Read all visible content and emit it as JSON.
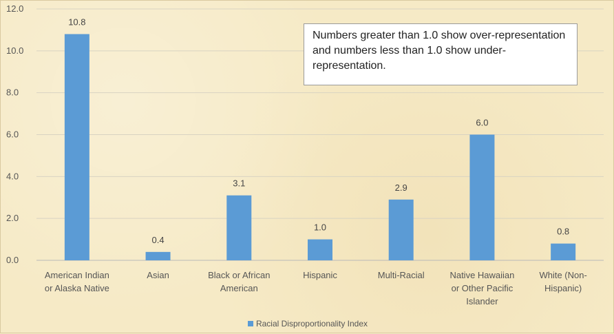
{
  "chart_data": {
    "type": "bar",
    "categories": [
      [
        "American Indian",
        "or Alaska Native"
      ],
      [
        "Asian"
      ],
      [
        "Black or African",
        "American"
      ],
      [
        "Hispanic"
      ],
      [
        "Multi-Racial"
      ],
      [
        "Native Hawaiian",
        "or Other Pacific",
        "Islander"
      ],
      [
        "White (Non-",
        "Hispanic)"
      ]
    ],
    "values": [
      10.8,
      0.4,
      3.1,
      1.0,
      2.9,
      6.0,
      0.8
    ],
    "value_labels": [
      "10.8",
      "0.4",
      "3.1",
      "1.0",
      "2.9",
      "6.0",
      "0.8"
    ],
    "ylim": [
      0,
      12
    ],
    "y_ticks": [
      "0.0",
      "2.0",
      "4.0",
      "6.0",
      "8.0",
      "10.0",
      "12.0"
    ],
    "grid": true,
    "legend": {
      "position": "bottom",
      "entries": [
        "Racial Disproportionality Index"
      ]
    },
    "series_color": "#5b9bd5",
    "annotation": "Numbers greater than 1.0 show over-representation and numbers less than 1.0 show under-representation."
  }
}
